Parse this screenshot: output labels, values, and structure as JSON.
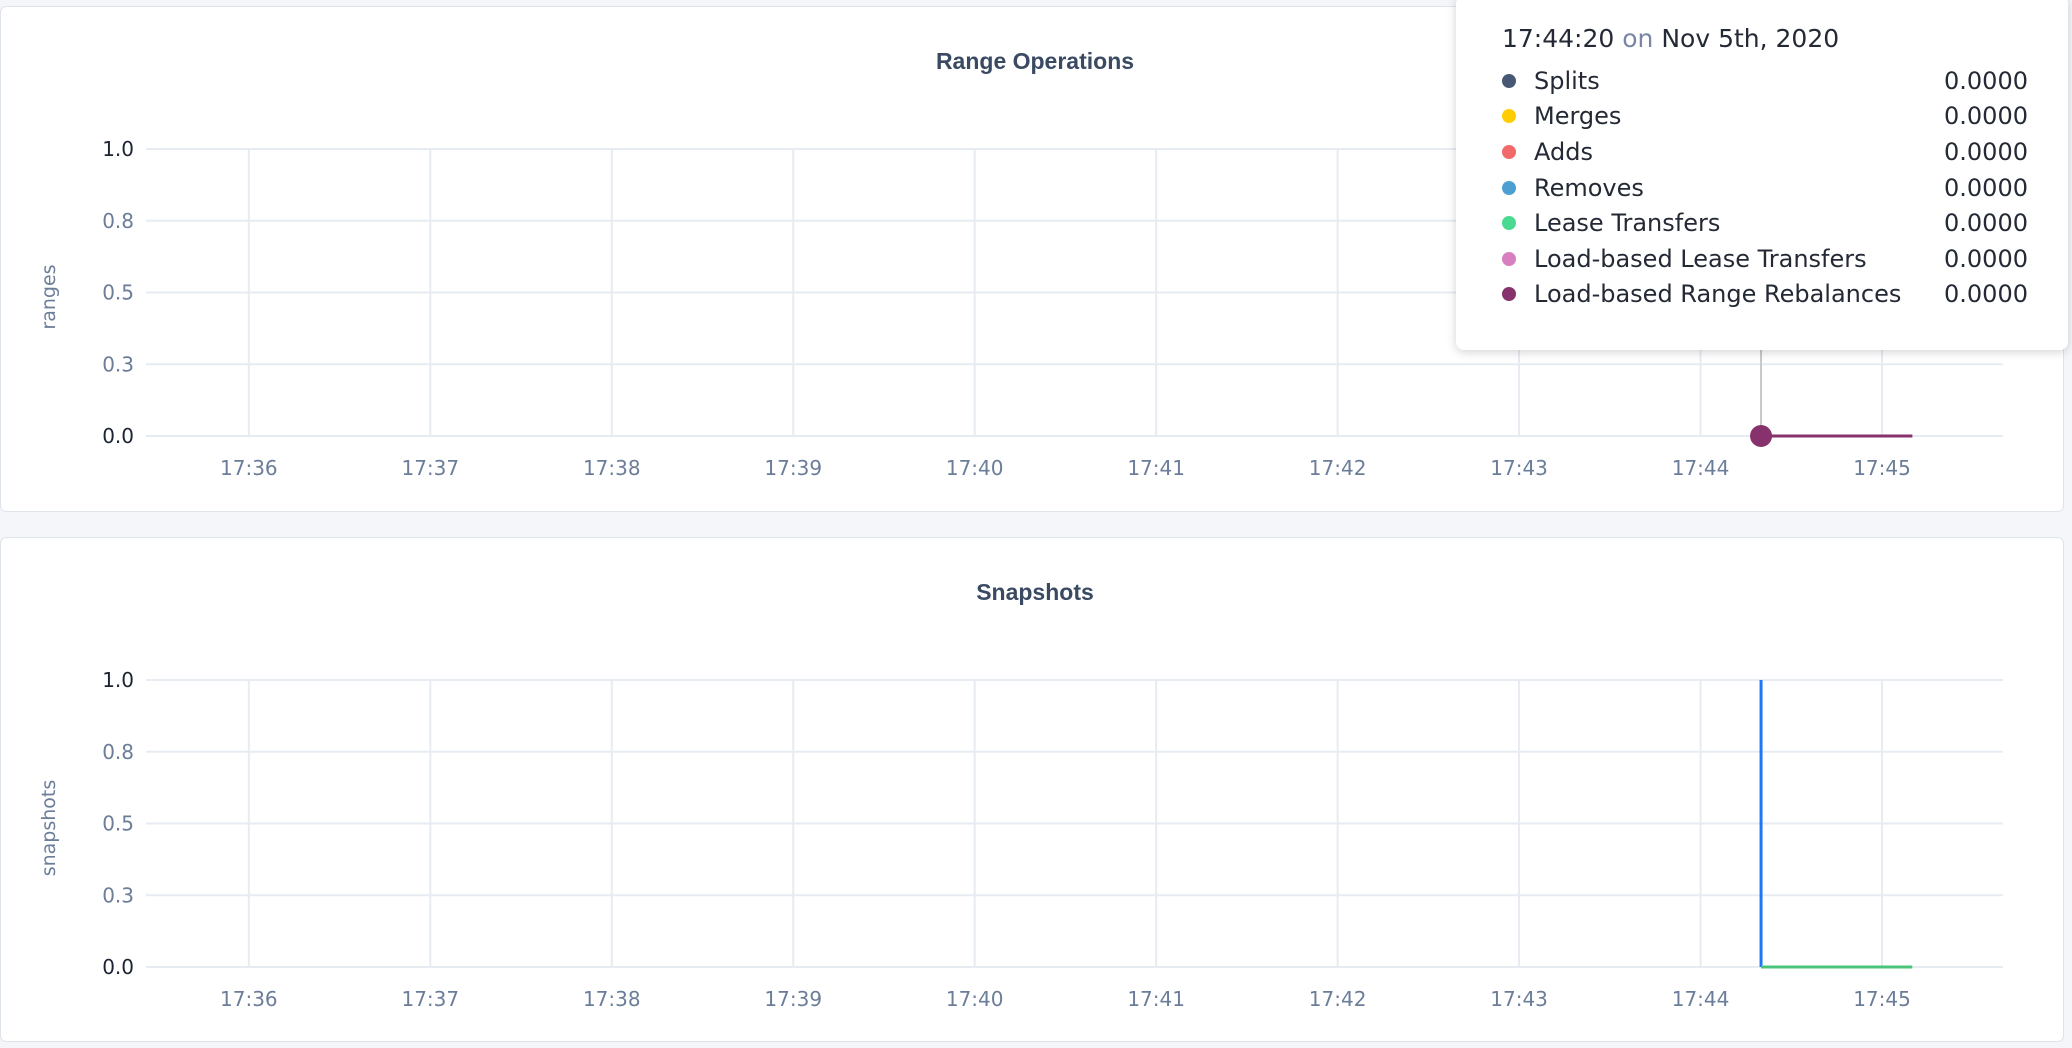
{
  "chart_data": [
    {
      "type": "line",
      "title": "Range Operations",
      "ylabel": "ranges",
      "xlabel": "",
      "ylim": [
        0,
        1
      ],
      "ytick_labels": [
        "0.0",
        "0.3",
        "0.5",
        "0.8",
        "1.0"
      ],
      "yticks": [
        0,
        0.25,
        0.5,
        0.75,
        1.0
      ],
      "xtick_labels": [
        "17:36",
        "17:37",
        "17:38",
        "17:39",
        "17:40",
        "17:41",
        "17:42",
        "17:43",
        "17:44",
        "17:45"
      ],
      "xlim": [
        "17:35:26",
        "17:45:40"
      ],
      "grid": true,
      "series": [
        {
          "name": "Splits",
          "color": "#475872",
          "points": [
            [
              "17:44:20",
              0
            ],
            [
              "17:45:10",
              0
            ]
          ]
        },
        {
          "name": "Merges",
          "color": "#ffcd02",
          "points": [
            [
              "17:44:20",
              0
            ],
            [
              "17:45:10",
              0
            ]
          ]
        },
        {
          "name": "Adds",
          "color": "#f16969",
          "points": [
            [
              "17:44:20",
              0
            ],
            [
              "17:45:10",
              0
            ]
          ]
        },
        {
          "name": "Removes",
          "color": "#4e9fd1",
          "points": [
            [
              "17:44:20",
              0
            ],
            [
              "17:45:10",
              0
            ]
          ]
        },
        {
          "name": "Lease Transfers",
          "color": "#49d990",
          "points": [
            [
              "17:44:20",
              0
            ],
            [
              "17:45:10",
              0
            ]
          ]
        },
        {
          "name": "Load-based Lease Transfers",
          "color": "#d77fbf",
          "points": [
            [
              "17:44:20",
              0
            ],
            [
              "17:45:10",
              0
            ]
          ]
        },
        {
          "name": "Load-based Range Rebalances",
          "color": "#87326d",
          "points": [
            [
              "17:44:20",
              0
            ],
            [
              "17:45:10",
              0
            ]
          ]
        }
      ],
      "hover": {
        "time": "17:44:20",
        "on": "on",
        "date": "Nov 5th, 2020",
        "values": [
          "0.0000",
          "0.0000",
          "0.0000",
          "0.0000",
          "0.0000",
          "0.0000",
          "0.0000"
        ]
      }
    },
    {
      "type": "line",
      "title": "Snapshots",
      "ylabel": "snapshots",
      "xlabel": "",
      "ylim": [
        0,
        1
      ],
      "ytick_labels": [
        "0.0",
        "0.3",
        "0.5",
        "0.8",
        "1.0"
      ],
      "yticks": [
        0,
        0.25,
        0.5,
        0.75,
        1.0
      ],
      "xtick_labels": [
        "17:36",
        "17:37",
        "17:38",
        "17:39",
        "17:40",
        "17:41",
        "17:42",
        "17:43",
        "17:44",
        "17:45"
      ],
      "xlim": [
        "17:35:26",
        "17:45:40"
      ],
      "grid": true,
      "series": [
        {
          "color": "#1f77f5",
          "points": [
            [
              "17:44:20",
              1
            ],
            [
              "17:44:20",
              0
            ]
          ]
        },
        {
          "color": "#49c47a",
          "points": [
            [
              "17:44:20",
              0
            ],
            [
              "17:45:10",
              0
            ]
          ]
        }
      ]
    }
  ]
}
